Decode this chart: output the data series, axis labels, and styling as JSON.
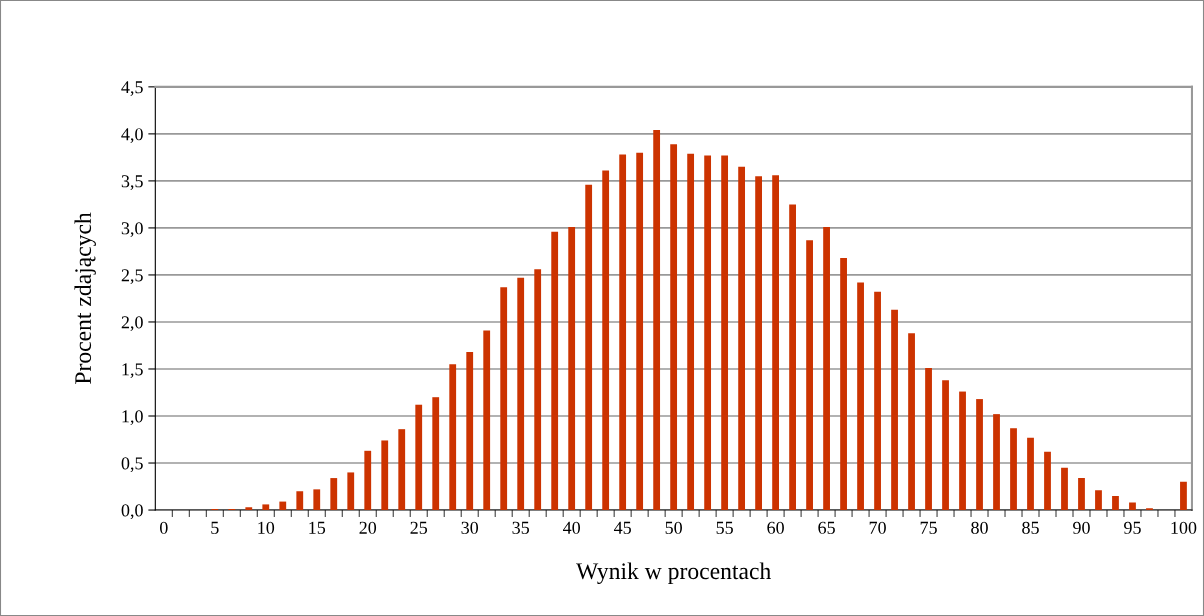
{
  "chart_data": {
    "type": "bar",
    "xlabel": "Wynik w procentach",
    "ylabel": "Procent zdających",
    "categories": [
      "0",
      null,
      null,
      "5",
      null,
      null,
      "10",
      null,
      null,
      "15",
      null,
      null,
      "20",
      null,
      null,
      "25",
      null,
      null,
      "30",
      null,
      null,
      "35",
      null,
      null,
      "40",
      null,
      null,
      "45",
      null,
      null,
      "50",
      null,
      null,
      "55",
      null,
      null,
      "60",
      null,
      null,
      "65",
      null,
      null,
      "70",
      null,
      null,
      "75",
      null,
      null,
      "80",
      null,
      null,
      "85",
      null,
      null,
      "90",
      null,
      null,
      "95",
      null,
      null,
      "100"
    ],
    "values": [
      0,
      0,
      0,
      0.01,
      0.01,
      0.03,
      0.06,
      0.09,
      0.2,
      0.22,
      0.34,
      0.4,
      0.63,
      0.74,
      0.86,
      1.12,
      1.2,
      1.55,
      1.68,
      1.91,
      2.37,
      2.47,
      2.56,
      2.96,
      3.01,
      3.46,
      3.61,
      3.78,
      3.8,
      4.04,
      3.89,
      3.79,
      3.77,
      3.77,
      3.65,
      3.55,
      3.56,
      3.25,
      2.87,
      3.01,
      2.68,
      2.42,
      2.32,
      2.13,
      1.88,
      1.51,
      1.38,
      1.26,
      1.18,
      1.02,
      0.87,
      0.77,
      0.62,
      0.45,
      0.34,
      0.21,
      0.15,
      0.08,
      0.02,
      0,
      0.3
    ],
    "color": "#cc3300",
    "ylim": [
      0,
      4.5
    ],
    "yticks": [
      {
        "value": 0,
        "label": "0,0"
      },
      {
        "value": 0.5,
        "label": "0,5"
      },
      {
        "value": 1,
        "label": "1,0"
      },
      {
        "value": 1.5,
        "label": "1,5"
      },
      {
        "value": 2,
        "label": "2,0"
      },
      {
        "value": 2.5,
        "label": "2,5"
      },
      {
        "value": 3,
        "label": "3,0"
      },
      {
        "value": 3.5,
        "label": "3,5"
      },
      {
        "value": 4,
        "label": "4,0"
      },
      {
        "value": 4.5,
        "label": "4,5"
      }
    ],
    "grid": "y"
  }
}
